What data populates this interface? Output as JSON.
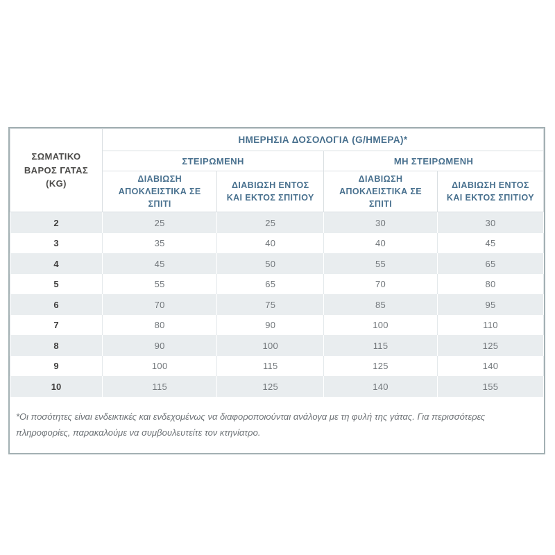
{
  "table": {
    "weight_header": "ΣΩΜΑΤΙΚΟ ΒΑΡΟΣ ΓΑΤΑΣ (KG)",
    "main_header": "ΗΜΕΡΗΣΙΑ ΔΟΣΟΛΟΓΙΑ (G/ΗΜΕΡΑ)*",
    "groups": [
      {
        "label": "ΣΤΕΙΡΩΜΕΝΗ"
      },
      {
        "label": "ΜΗ ΣΤΕΙΡΩΜΕΝΗ"
      }
    ],
    "sub_headers": [
      "ΔΙΑΒΙΩΣΗ ΑΠΟΚΛΕΙΣΤΙΚΑ ΣΕ ΣΠΙΤΙ",
      "ΔΙΑΒΙΩΣΗ ΕΝΤΟΣ ΚΑΙ ΕΚΤΟΣ ΣΠΙΤΙΟΥ",
      "ΔΙΑΒΙΩΣΗ ΑΠΟΚΛΕΙΣΤΙΚΑ ΣΕ ΣΠΙΤΙ",
      "ΔΙΑΒΙΩΣΗ ΕΝΤΟΣ ΚΑΙ ΕΚΤΟΣ ΣΠΙΤΙΟΥ"
    ],
    "rows": [
      {
        "kg": "2",
        "values": [
          "25",
          "25",
          "30",
          "30"
        ]
      },
      {
        "kg": "3",
        "values": [
          "35",
          "40",
          "40",
          "45"
        ]
      },
      {
        "kg": "4",
        "values": [
          "45",
          "50",
          "55",
          "65"
        ]
      },
      {
        "kg": "5",
        "values": [
          "55",
          "65",
          "70",
          "80"
        ]
      },
      {
        "kg": "6",
        "values": [
          "70",
          "75",
          "85",
          "95"
        ]
      },
      {
        "kg": "7",
        "values": [
          "80",
          "90",
          "100",
          "110"
        ]
      },
      {
        "kg": "8",
        "values": [
          "90",
          "100",
          "115",
          "125"
        ]
      },
      {
        "kg": "9",
        "values": [
          "100",
          "115",
          "125",
          "140"
        ]
      },
      {
        "kg": "10",
        "values": [
          "115",
          "125",
          "140",
          "155"
        ]
      }
    ],
    "footnote": "*Οι ποσότητες είναι ενδεικτικές και ενδεχομένως να διαφοροποιούνται ανάλογα με τη φυλή της γάτας. Για περισσότερες πληροφορίες, παρακαλούμε να συμβουλευτείτε τον κτηνίατρο."
  },
  "colors": {
    "accent_blue": "#48708e",
    "dark_text": "#4c4b49",
    "value_text": "#72777b",
    "stripe_bg": "#e9edef",
    "inner_border": "#dadfe2",
    "outer_border": "#a3b0b3"
  }
}
